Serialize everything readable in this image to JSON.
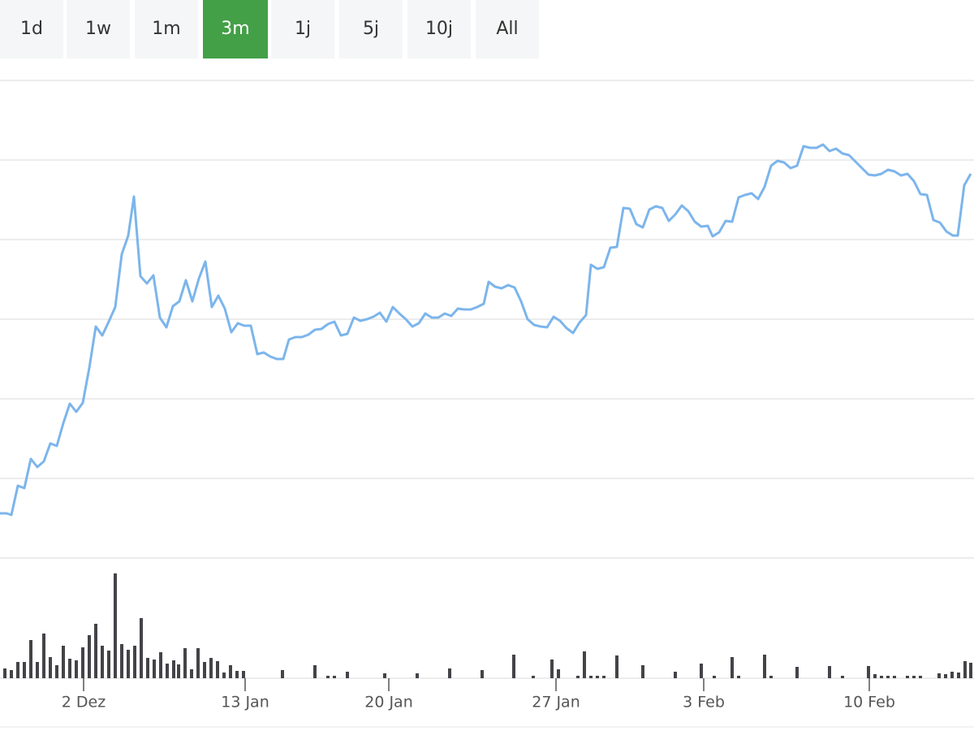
{
  "range_buttons": [
    "1d",
    "1w",
    "1m",
    "3m",
    "1j",
    "5j",
    "10j",
    "All"
  ],
  "active_button": 3,
  "chart_data": [
    {
      "type": "line",
      "color": "#7cb5ec",
      "grid": true,
      "xlim": [
        0,
        1196
      ],
      "ylim": [
        0,
        588
      ],
      "yticks": [
        0,
        98,
        196,
        294,
        392,
        490,
        588
      ],
      "x": [
        0,
        8,
        14,
        22,
        30,
        38,
        46,
        54,
        62,
        70,
        78,
        86,
        94,
        102,
        110,
        118,
        126,
        134,
        142,
        150,
        158,
        165,
        173,
        181,
        189,
        197,
        205,
        213,
        221,
        229,
        237,
        245,
        253,
        261,
        269,
        277,
        285,
        293,
        301,
        309,
        317,
        325,
        333,
        341,
        349,
        356,
        364,
        372,
        380,
        388,
        396,
        404,
        412,
        420,
        428,
        436,
        444,
        452,
        460,
        468,
        476,
        484,
        492,
        500,
        508,
        516,
        524,
        532,
        540,
        548,
        556,
        564,
        572,
        580,
        588,
        596,
        602,
        610,
        618,
        626,
        634,
        642,
        650,
        658,
        666,
        674,
        682,
        690,
        698,
        706,
        714,
        722,
        728,
        736,
        744,
        752,
        760,
        768,
        776,
        784,
        792,
        800,
        808,
        816,
        824,
        832,
        840,
        848,
        856,
        864,
        872,
        878,
        886,
        894,
        902,
        910,
        918,
        926,
        934,
        942,
        950,
        958,
        966,
        974,
        982,
        990,
        998,
        1006,
        1014,
        1022,
        1030,
        1038,
        1046,
        1054,
        1062,
        1070,
        1078,
        1086,
        1094,
        1102,
        1110,
        1118,
        1126,
        1134,
        1142,
        1150,
        1158,
        1166,
        1174,
        1180,
        1188,
        1196
      ],
      "values": [
        55,
        55,
        53,
        89,
        86,
        122,
        112,
        119,
        141,
        138,
        166,
        190,
        180,
        191,
        234,
        285,
        274,
        291,
        309,
        374,
        397,
        445,
        347,
        338,
        348,
        296,
        284,
        310,
        316,
        342,
        316,
        344,
        365,
        309,
        323,
        307,
        278,
        289,
        286,
        286,
        251,
        253,
        248,
        245,
        245,
        269,
        272,
        272,
        275,
        281,
        282,
        288,
        291,
        274,
        276,
        296,
        292,
        294,
        297,
        302,
        291,
        309,
        301,
        294,
        285,
        289,
        301,
        296,
        296,
        301,
        298,
        307,
        306,
        306,
        309,
        313,
        340,
        334,
        332,
        336,
        333,
        316,
        294,
        287,
        285,
        284,
        297,
        292,
        283,
        277,
        290,
        299,
        361,
        356,
        358,
        382,
        383,
        431,
        430,
        411,
        407,
        429,
        433,
        431,
        415,
        423,
        434,
        427,
        414,
        408,
        409,
        396,
        401,
        415,
        414,
        444,
        447,
        449,
        442,
        457,
        483,
        489,
        487,
        480,
        483,
        507,
        505,
        505,
        509,
        501,
        504,
        498,
        496,
        488,
        480,
        472,
        471,
        473,
        478,
        476,
        471,
        473,
        464,
        448,
        447,
        416,
        413,
        402,
        397,
        397,
        459,
        473
      ]
    },
    {
      "type": "bar",
      "color": "#434348",
      "xlim": [
        0,
        1196
      ],
      "ylim": [
        0,
        140
      ],
      "xticks": [
        {
          "value": 103,
          "label": "2 Dez"
        },
        {
          "value": 302,
          "label": "13 Jan"
        },
        {
          "value": 479,
          "label": "20 Jan"
        },
        {
          "value": 685,
          "label": "27 Jan"
        },
        {
          "value": 867,
          "label": "3 Feb"
        },
        {
          "value": 1071,
          "label": "10 Feb"
        }
      ],
      "x": [
        6,
        14,
        22,
        30,
        38,
        46,
        54,
        62,
        70,
        78,
        86,
        94,
        102,
        110,
        118,
        126,
        134,
        142,
        150,
        158,
        166,
        174,
        182,
        190,
        198,
        206,
        214,
        220,
        228,
        236,
        244,
        252,
        260,
        268,
        276,
        284,
        292,
        300,
        348,
        388,
        404,
        412,
        428,
        474,
        514,
        554,
        594,
        633,
        657,
        680,
        688,
        712,
        720,
        728,
        736,
        744,
        760,
        792,
        832,
        864,
        880,
        902,
        910,
        942,
        950,
        982,
        1022,
        1038,
        1070,
        1078,
        1086,
        1094,
        1102,
        1118,
        1126,
        1134,
        1157,
        1165,
        1173,
        1181,
        1189,
        1196
      ],
      "values": [
        12,
        10,
        20,
        20,
        47,
        20,
        55,
        26,
        16,
        40,
        24,
        22,
        38,
        53,
        67,
        40,
        34,
        129,
        42,
        35,
        40,
        74,
        25,
        23,
        32,
        18,
        22,
        17,
        37,
        11,
        37,
        20,
        25,
        21,
        7,
        16,
        9,
        9,
        10,
        16,
        3,
        3,
        8,
        6,
        6,
        12,
        10,
        29,
        3,
        23,
        11,
        3,
        33,
        3,
        3,
        3,
        28,
        16,
        8,
        18,
        3,
        26,
        3,
        29,
        3,
        14,
        15,
        3,
        15,
        5,
        3,
        3,
        3,
        3,
        3,
        3,
        6,
        5,
        8,
        7,
        21,
        19
      ]
    }
  ]
}
